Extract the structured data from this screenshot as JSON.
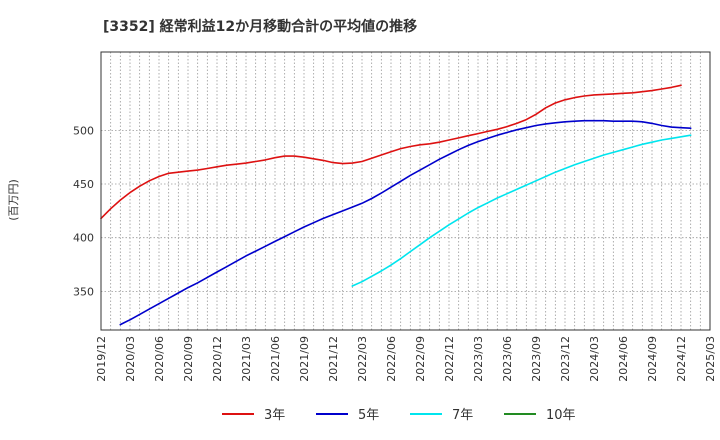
{
  "chart_data": {
    "type": "line",
    "title": "[3352]  経常利益12か月移動合計の平均値の推移",
    "ylabel": "(百万円)",
    "xlabel": "",
    "ylim": [
      314,
      573
    ],
    "yticks": [
      350,
      400,
      450,
      500
    ],
    "xlim": [
      "2019-12",
      "2025-03"
    ],
    "xticks": [
      "2019/12",
      "2020/03",
      "2020/06",
      "2020/09",
      "2020/12",
      "2021/03",
      "2021/06",
      "2021/09",
      "2021/12",
      "2022/03",
      "2022/06",
      "2022/09",
      "2022/12",
      "2023/03",
      "2023/06",
      "2023/09",
      "2023/12",
      "2024/03",
      "2024/06",
      "2024/09",
      "2024/12",
      "2025/03"
    ],
    "grid": true,
    "legend_position": "bottom",
    "series": [
      {
        "name": "3年",
        "color": "#dd1111",
        "points": [
          [
            "2019-12",
            418
          ],
          [
            "2020-01",
            427
          ],
          [
            "2020-02",
            435
          ],
          [
            "2020-03",
            442
          ],
          [
            "2020-04",
            448
          ],
          [
            "2020-05",
            453
          ],
          [
            "2020-06",
            457
          ],
          [
            "2020-07",
            460
          ],
          [
            "2020-08",
            461
          ],
          [
            "2020-09",
            462
          ],
          [
            "2020-10",
            463
          ],
          [
            "2020-11",
            464.5
          ],
          [
            "2020-12",
            466
          ],
          [
            "2021-01",
            467.5
          ],
          [
            "2021-02",
            468.5
          ],
          [
            "2021-03",
            469.5
          ],
          [
            "2021-04",
            471
          ],
          [
            "2021-05",
            472.5
          ],
          [
            "2021-06",
            474.5
          ],
          [
            "2021-07",
            476
          ],
          [
            "2021-08",
            476
          ],
          [
            "2021-09",
            475
          ],
          [
            "2021-10",
            473.5
          ],
          [
            "2021-11",
            472
          ],
          [
            "2021-12",
            470
          ],
          [
            "2022-01",
            469
          ],
          [
            "2022-02",
            469.5
          ],
          [
            "2022-03",
            471
          ],
          [
            "2022-04",
            474
          ],
          [
            "2022-05",
            477
          ],
          [
            "2022-06",
            480
          ],
          [
            "2022-07",
            483
          ],
          [
            "2022-08",
            485
          ],
          [
            "2022-09",
            486.5
          ],
          [
            "2022-10",
            487.5
          ],
          [
            "2022-11",
            489
          ],
          [
            "2022-12",
            491
          ],
          [
            "2023-01",
            493
          ],
          [
            "2023-02",
            495
          ],
          [
            "2023-03",
            497
          ],
          [
            "2023-04",
            499
          ],
          [
            "2023-05",
            501
          ],
          [
            "2023-06",
            503.5
          ],
          [
            "2023-07",
            506.5
          ],
          [
            "2023-08",
            510
          ],
          [
            "2023-09",
            515
          ],
          [
            "2023-10",
            521
          ],
          [
            "2023-11",
            525.5
          ],
          [
            "2023-12",
            528.5
          ],
          [
            "2024-01",
            530.5
          ],
          [
            "2024-02",
            532
          ],
          [
            "2024-03",
            533
          ],
          [
            "2024-04",
            533.5
          ],
          [
            "2024-05",
            534
          ],
          [
            "2024-06",
            534.5
          ],
          [
            "2024-07",
            535
          ],
          [
            "2024-08",
            536
          ],
          [
            "2024-09",
            537
          ],
          [
            "2024-10",
            538.5
          ],
          [
            "2024-11",
            540
          ],
          [
            "2024-12",
            542
          ]
        ]
      },
      {
        "name": "5年",
        "color": "#0000cc",
        "points": [
          [
            "2020-02",
            319
          ],
          [
            "2020-03",
            323.5
          ],
          [
            "2020-04",
            328.5
          ],
          [
            "2020-05",
            333.5
          ],
          [
            "2020-06",
            338.5
          ],
          [
            "2020-07",
            343.5
          ],
          [
            "2020-08",
            348.5
          ],
          [
            "2020-09",
            353.5
          ],
          [
            "2020-10",
            358
          ],
          [
            "2020-11",
            363
          ],
          [
            "2020-12",
            368
          ],
          [
            "2021-01",
            373
          ],
          [
            "2021-02",
            378
          ],
          [
            "2021-03",
            383
          ],
          [
            "2021-04",
            387.5
          ],
          [
            "2021-05",
            392
          ],
          [
            "2021-06",
            396.5
          ],
          [
            "2021-07",
            401
          ],
          [
            "2021-08",
            405.5
          ],
          [
            "2021-09",
            410
          ],
          [
            "2021-10",
            414
          ],
          [
            "2021-11",
            418
          ],
          [
            "2021-12",
            421.5
          ],
          [
            "2022-01",
            425
          ],
          [
            "2022-02",
            428.5
          ],
          [
            "2022-03",
            432
          ],
          [
            "2022-04",
            436.5
          ],
          [
            "2022-05",
            441.5
          ],
          [
            "2022-06",
            447
          ],
          [
            "2022-07",
            452.5
          ],
          [
            "2022-08",
            458
          ],
          [
            "2022-09",
            463
          ],
          [
            "2022-10",
            468
          ],
          [
            "2022-11",
            473
          ],
          [
            "2022-12",
            477.5
          ],
          [
            "2023-01",
            482
          ],
          [
            "2023-02",
            486
          ],
          [
            "2023-03",
            489.5
          ],
          [
            "2023-04",
            492.5
          ],
          [
            "2023-05",
            495.5
          ],
          [
            "2023-06",
            498
          ],
          [
            "2023-07",
            500.5
          ],
          [
            "2023-08",
            502.5
          ],
          [
            "2023-09",
            504.5
          ],
          [
            "2023-10",
            506
          ],
          [
            "2023-11",
            507
          ],
          [
            "2023-12",
            508
          ],
          [
            "2024-01",
            508.5
          ],
          [
            "2024-02",
            509
          ],
          [
            "2024-03",
            509
          ],
          [
            "2024-04",
            509
          ],
          [
            "2024-05",
            508.5
          ],
          [
            "2024-06",
            508.5
          ],
          [
            "2024-07",
            508.5
          ],
          [
            "2024-08",
            508
          ],
          [
            "2024-09",
            506.5
          ],
          [
            "2024-10",
            504.5
          ],
          [
            "2024-11",
            503
          ],
          [
            "2024-12",
            502.5
          ],
          [
            "2025-01",
            502
          ]
        ]
      },
      {
        "name": "7年",
        "color": "#00e5ee",
        "points": [
          [
            "2022-02",
            355
          ],
          [
            "2022-03",
            359
          ],
          [
            "2022-04",
            364
          ],
          [
            "2022-05",
            369
          ],
          [
            "2022-06",
            374.5
          ],
          [
            "2022-07",
            380.5
          ],
          [
            "2022-08",
            387
          ],
          [
            "2022-09",
            393.5
          ],
          [
            "2022-10",
            400
          ],
          [
            "2022-11",
            406
          ],
          [
            "2022-12",
            412
          ],
          [
            "2023-01",
            417.5
          ],
          [
            "2023-02",
            423
          ],
          [
            "2023-03",
            428
          ],
          [
            "2023-04",
            432.5
          ],
          [
            "2023-05",
            437
          ],
          [
            "2023-06",
            441
          ],
          [
            "2023-07",
            445
          ],
          [
            "2023-08",
            449
          ],
          [
            "2023-09",
            453
          ],
          [
            "2023-10",
            457
          ],
          [
            "2023-11",
            461
          ],
          [
            "2023-12",
            464.5
          ],
          [
            "2024-01",
            468
          ],
          [
            "2024-02",
            471
          ],
          [
            "2024-03",
            474
          ],
          [
            "2024-04",
            477
          ],
          [
            "2024-05",
            479.5
          ],
          [
            "2024-06",
            482
          ],
          [
            "2024-07",
            484.5
          ],
          [
            "2024-08",
            487
          ],
          [
            "2024-09",
            489
          ],
          [
            "2024-10",
            491
          ],
          [
            "2024-11",
            492.5
          ],
          [
            "2024-12",
            494
          ],
          [
            "2025-01",
            495.5
          ]
        ]
      },
      {
        "name": "10年",
        "color": "#228b22",
        "points": []
      }
    ]
  }
}
